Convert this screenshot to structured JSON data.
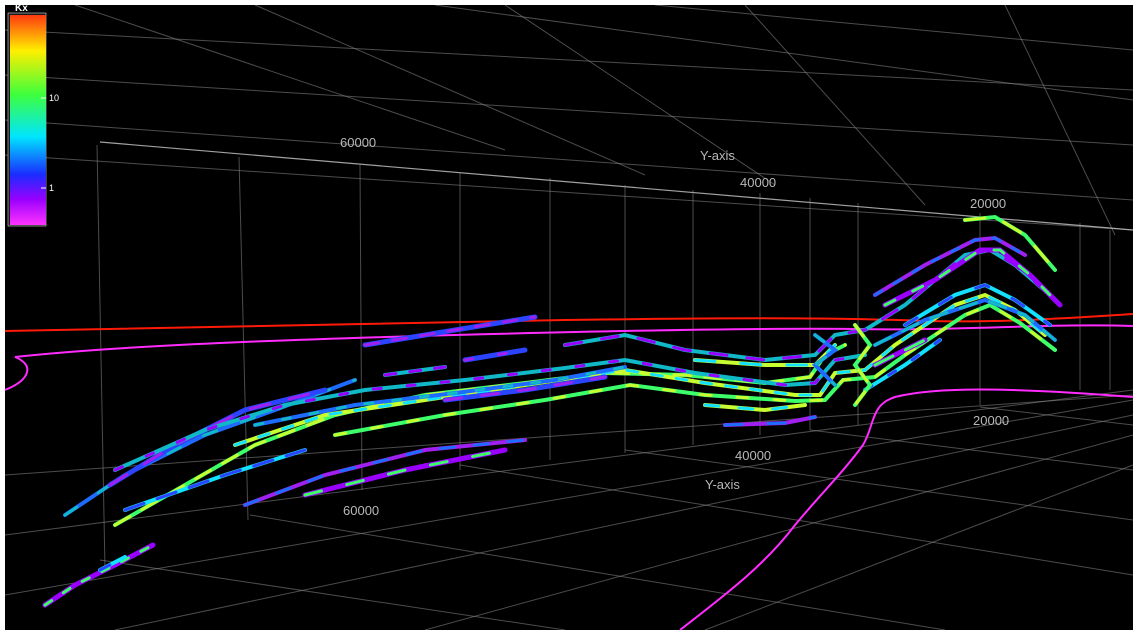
{
  "legend": {
    "title": "Kx",
    "tick_labels": [
      "10",
      "1"
    ],
    "colors": [
      "#ff3a10",
      "#ffef00",
      "#3dff3d",
      "#00e5ff",
      "#1a2cff",
      "#9b00ff",
      "#ff33ff"
    ]
  },
  "axes": {
    "upper": {
      "label": "Y-axis",
      "ticks": [
        "60000",
        "40000",
        "20000"
      ]
    },
    "lower": {
      "label": "Y-axis",
      "ticks": [
        "60000",
        "40000",
        "20000"
      ]
    }
  },
  "scene_colors": {
    "background": "#000000",
    "outline_red": "#ff1a0a",
    "outline_magenta": "#ff2bff"
  },
  "property_colors": [
    "#9a00ff",
    "#14e0ff",
    "#1e6bff",
    "#3dff6a",
    "#2a44ff",
    "#10b8c8",
    "#c8ff30",
    "#a020f0"
  ]
}
